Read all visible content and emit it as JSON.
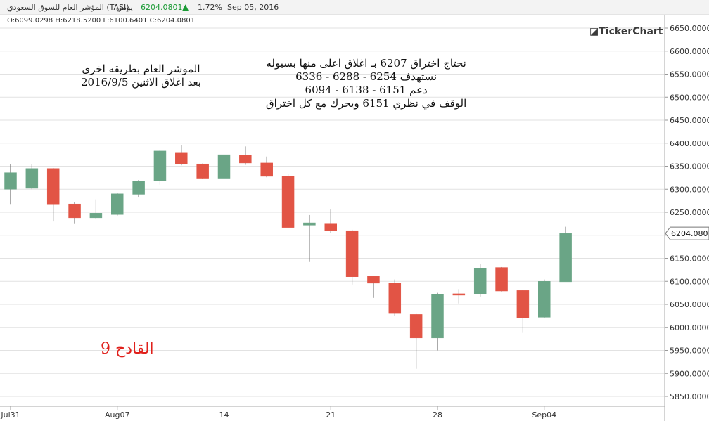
{
  "header": {
    "symbol": "المؤشر العام للسوق السعودي (TASI)",
    "period": "يومي",
    "price": "6204.0801",
    "change_pct": "1.72%",
    "date": "Sep 05, 2016",
    "up_color": "#1a9a34"
  },
  "ohlc_readout": "O:6099.0298 H:6218.5200 L:6100.6401 C:6204.0801",
  "brand": "TickerChart",
  "annotations": {
    "left_line1": "الموشر العام بطريقه اخرى",
    "left_line2": "بعد اغلاق الاثنين 2016/9/5",
    "right_line1": "نحتاج اختراق 6207 بـ اغلاق اعلى منها بسيوله",
    "right_line2": "نستهدف 6254 - 6288 - 6336",
    "right_line3": "دعم 6151 - 6138 - 6094",
    "right_line4": "الوقف في نظري 6151 ويحرك مع كل اختراق",
    "footer_label": "القادح 9",
    "footer_color": "#e0201b"
  },
  "chart_data": {
    "type": "candlestick",
    "title": "المؤشر العام للسوق السعودي (TASI)",
    "ylim": [
      5830,
      6670
    ],
    "yticks": [
      5850,
      5900,
      5950,
      6000,
      6050,
      6100,
      6150,
      6200,
      6250,
      6300,
      6350,
      6400,
      6450,
      6500,
      6550,
      6600,
      6650
    ],
    "ytick_labels": [
      "5850.0000",
      "5900.0000",
      "5950.0000",
      "6000.0000",
      "6050.0000",
      "6100.0000",
      "6150.0000",
      "6200.0000",
      "6250.0000",
      "6300.0000",
      "6350.0000",
      "6400.0000",
      "6450.0000",
      "6500.0000",
      "6550.0000",
      "6600.0000",
      "6650.0000"
    ],
    "xtick_labels": [
      {
        "label": "Jul31",
        "index": 0
      },
      {
        "label": "Aug07",
        "index": 5
      },
      {
        "label": "14",
        "index": 10
      },
      {
        "label": "21",
        "index": 15
      },
      {
        "label": "28",
        "index": 20
      },
      {
        "label": "Sep04",
        "index": 25
      }
    ],
    "last_price_label": "6204.0801",
    "last_price": 6204.08,
    "colors": {
      "up": "#6aa586",
      "down": "#e25445",
      "grid": "#e2e2e2"
    },
    "candles": [
      {
        "o": 6300,
        "h": 6355,
        "l": 6268,
        "c": 6336
      },
      {
        "o": 6302,
        "h": 6355,
        "l": 6300,
        "c": 6345
      },
      {
        "o": 6345,
        "h": 6346,
        "l": 6230,
        "c": 6268
      },
      {
        "o": 6268,
        "h": 6272,
        "l": 6226,
        "c": 6238
      },
      {
        "o": 6238,
        "h": 6278,
        "l": 6236,
        "c": 6248
      },
      {
        "o": 6245,
        "h": 6292,
        "l": 6243,
        "c": 6290
      },
      {
        "o": 6289,
        "h": 6320,
        "l": 6282,
        "c": 6318
      },
      {
        "o": 6318,
        "h": 6386,
        "l": 6310,
        "c": 6383
      },
      {
        "o": 6380,
        "h": 6395,
        "l": 6352,
        "c": 6355
      },
      {
        "o": 6355,
        "h": 6356,
        "l": 6322,
        "c": 6324
      },
      {
        "o": 6324,
        "h": 6384,
        "l": 6322,
        "c": 6375
      },
      {
        "o": 6374,
        "h": 6393,
        "l": 6353,
        "c": 6357
      },
      {
        "o": 6357,
        "h": 6371,
        "l": 6326,
        "c": 6328
      },
      {
        "o": 6328,
        "h": 6334,
        "l": 6215,
        "c": 6217
      },
      {
        "o": 6222,
        "h": 6244,
        "l": 6142,
        "c": 6227
      },
      {
        "o": 6226,
        "h": 6256,
        "l": 6205,
        "c": 6210
      },
      {
        "o": 6210,
        "h": 6212,
        "l": 6093,
        "c": 6110
      },
      {
        "o": 6111,
        "h": 6112,
        "l": 6064,
        "c": 6096
      },
      {
        "o": 6096,
        "h": 6104,
        "l": 6025,
        "c": 6030
      },
      {
        "o": 6028,
        "h": 6029,
        "l": 5910,
        "c": 5977
      },
      {
        "o": 5977,
        "h": 6075,
        "l": 5950,
        "c": 6072
      },
      {
        "o": 6073,
        "h": 6083,
        "l": 6052,
        "c": 6072
      },
      {
        "o": 6072,
        "h": 6137,
        "l": 6067,
        "c": 6129
      },
      {
        "o": 6130,
        "h": 6131,
        "l": 6078,
        "c": 6079
      },
      {
        "o": 6080,
        "h": 6082,
        "l": 5988,
        "c": 6020
      },
      {
        "o": 6022,
        "h": 6104,
        "l": 6020,
        "c": 6100
      },
      {
        "o": 6099.03,
        "h": 6218.52,
        "l": 6100.64,
        "c": 6204.08
      }
    ]
  }
}
